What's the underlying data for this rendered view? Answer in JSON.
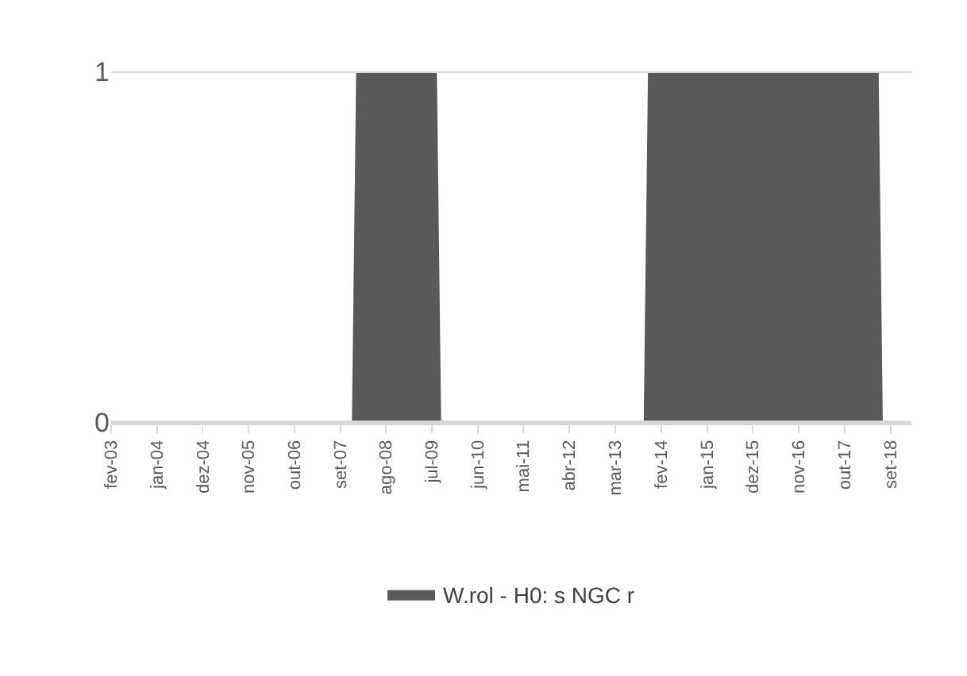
{
  "chart_data": {
    "type": "area",
    "x": [
      "2003-02",
      "2007-12",
      "2008-01",
      "2009-08",
      "2009-09",
      "2013-10",
      "2013-11",
      "2018-06",
      "2018-07",
      "2018-09"
    ],
    "series": [
      {
        "name": "W.rol - H0: s NGC r",
        "color": "#595959",
        "values": [
          0,
          0,
          1,
          1,
          0,
          0,
          1,
          1,
          0,
          0
        ]
      }
    ],
    "xlim": [
      "2003-02",
      "2019-02"
    ],
    "xticks": [
      {
        "value": "2003-02",
        "label": "fev-03"
      },
      {
        "value": "2004-01",
        "label": "jan-04"
      },
      {
        "value": "2004-12",
        "label": "dez-04"
      },
      {
        "value": "2005-11",
        "label": "nov-05"
      },
      {
        "value": "2006-10",
        "label": "out-06"
      },
      {
        "value": "2007-09",
        "label": "set-07"
      },
      {
        "value": "2008-08",
        "label": "ago-08"
      },
      {
        "value": "2009-07",
        "label": "jul-09"
      },
      {
        "value": "2010-06",
        "label": "jun-10"
      },
      {
        "value": "2011-05",
        "label": "mai-11"
      },
      {
        "value": "2012-04",
        "label": "abr-12"
      },
      {
        "value": "2013-03",
        "label": "mar-13"
      },
      {
        "value": "2014-02",
        "label": "fev-14"
      },
      {
        "value": "2015-01",
        "label": "jan-15"
      },
      {
        "value": "2015-12",
        "label": "dez-15"
      },
      {
        "value": "2016-11",
        "label": "nov-16"
      },
      {
        "value": "2017-10",
        "label": "out-17"
      },
      {
        "value": "2018-09",
        "label": "set-18"
      }
    ],
    "ylim": [
      0,
      1
    ],
    "yticks": [
      0,
      1
    ],
    "grid": "y",
    "legend": "bottom"
  }
}
